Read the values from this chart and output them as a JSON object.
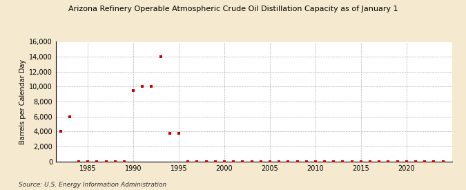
{
  "title": "Arizona Refinery Operable Atmospheric Crude Oil Distillation Capacity as of January 1",
  "ylabel": "Barrels per Calendar Day",
  "source": "Source: U.S. Energy Information Administration",
  "fig_background_color": "#f5ead0",
  "plot_background_color": "#ffffff",
  "marker_color": "#cc0000",
  "ylim": [
    0,
    16000
  ],
  "yticks": [
    0,
    2000,
    4000,
    6000,
    8000,
    10000,
    12000,
    14000,
    16000
  ],
  "ytick_labels": [
    "0",
    "2,000",
    "4,000",
    "6,000",
    "8,000",
    "10,000",
    "12,000",
    "14,000",
    "16,000"
  ],
  "xlim": [
    1981.5,
    2025
  ],
  "xticks": [
    1985,
    1990,
    1995,
    2000,
    2005,
    2010,
    2015,
    2020
  ],
  "data": [
    [
      1982,
      4000
    ],
    [
      1983,
      6000
    ],
    [
      1984,
      0
    ],
    [
      1985,
      0
    ],
    [
      1986,
      0
    ],
    [
      1987,
      0
    ],
    [
      1988,
      0
    ],
    [
      1989,
      0
    ],
    [
      1990,
      9500
    ],
    [
      1991,
      10000
    ],
    [
      1992,
      10000
    ],
    [
      1993,
      14000
    ],
    [
      1994,
      3800
    ],
    [
      1995,
      3800
    ],
    [
      1996,
      0
    ],
    [
      1997,
      0
    ],
    [
      1998,
      0
    ],
    [
      1999,
      0
    ],
    [
      2000,
      0
    ],
    [
      2001,
      0
    ],
    [
      2002,
      0
    ],
    [
      2003,
      0
    ],
    [
      2004,
      0
    ],
    [
      2005,
      0
    ],
    [
      2006,
      0
    ],
    [
      2007,
      0
    ],
    [
      2008,
      0
    ],
    [
      2009,
      0
    ],
    [
      2010,
      0
    ],
    [
      2011,
      0
    ],
    [
      2012,
      0
    ],
    [
      2013,
      0
    ],
    [
      2014,
      0
    ],
    [
      2015,
      0
    ],
    [
      2016,
      0
    ],
    [
      2017,
      0
    ],
    [
      2018,
      0
    ],
    [
      2019,
      0
    ],
    [
      2020,
      0
    ],
    [
      2021,
      0
    ],
    [
      2022,
      0
    ],
    [
      2023,
      0
    ],
    [
      2024,
      0
    ]
  ]
}
